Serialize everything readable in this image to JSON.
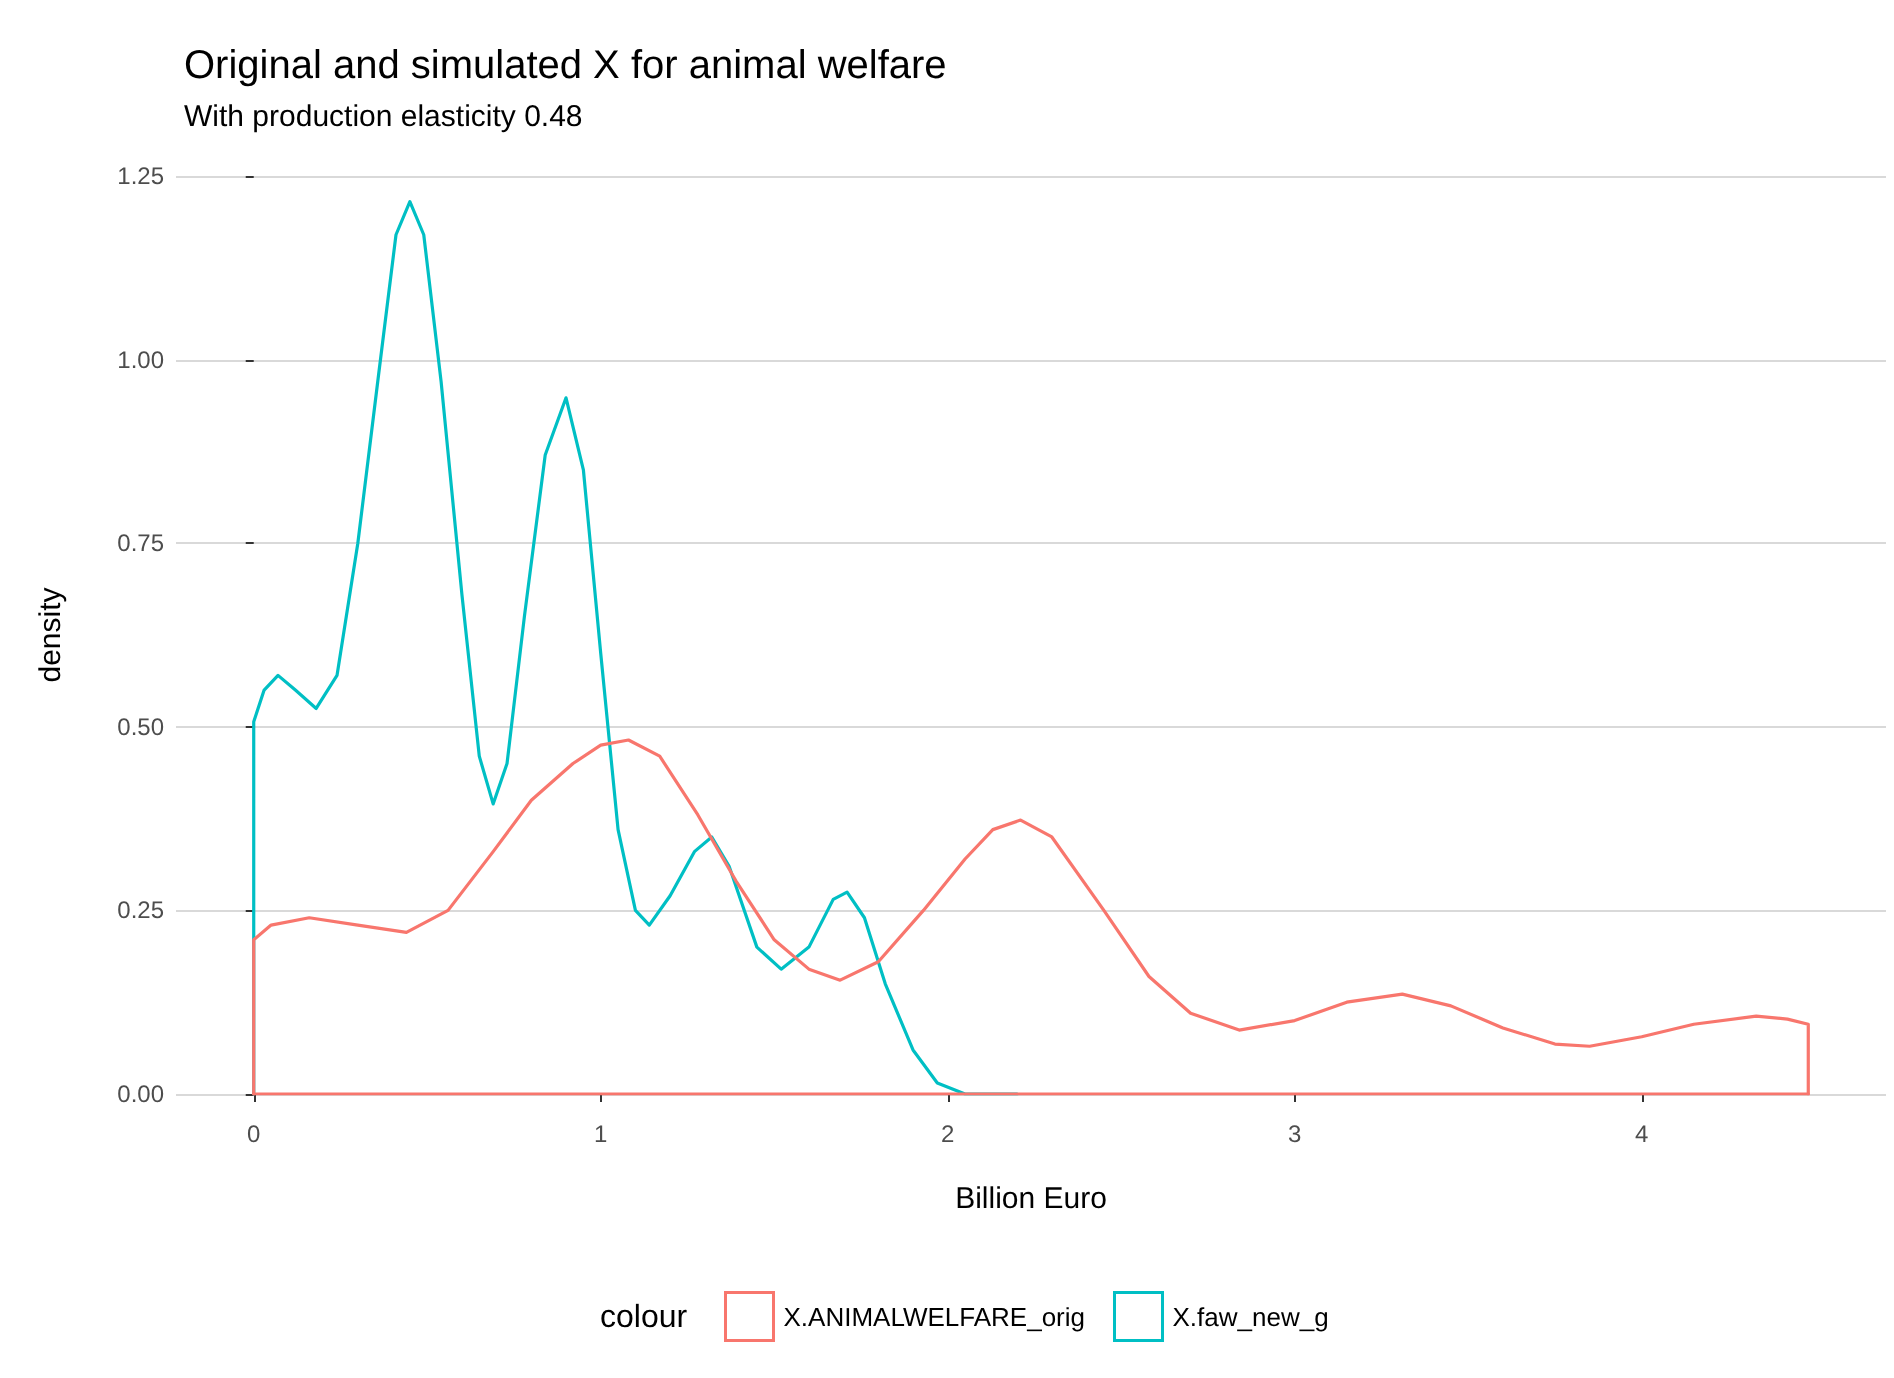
{
  "chart_data": {
    "type": "line",
    "title": "Original and simulated X for animal welfare",
    "subtitle": "With production elasticity 0.48",
    "xlabel": "Billion Euro",
    "ylabel": "density",
    "legend_title": "colour",
    "series": [
      {
        "color": "#f8766d",
        "x": [
          0,
          4.48
        ],
        "values": [
          0,
          0
        ]
      },
      {
        "name": "X.ANIMALWELFARE_orig",
        "color": "#f8766d",
        "x": [
          0,
          0,
          0.05,
          0.16,
          0.3,
          0.44,
          0.56,
          0.69,
          0.8,
          0.92,
          1.0,
          1.08,
          1.17,
          1.28,
          1.39,
          1.5,
          1.6,
          1.69,
          1.8,
          1.93,
          2.05,
          2.13,
          2.21,
          2.3,
          2.45,
          2.58,
          2.7,
          2.84,
          3.0,
          3.15,
          3.31,
          3.45,
          3.6,
          3.75,
          3.85,
          4.0,
          4.15,
          4.33,
          4.42,
          4.48,
          4.48
        ],
        "values": [
          0,
          0.21,
          0.23,
          0.24,
          0.23,
          0.22,
          0.25,
          0.33,
          0.4,
          0.45,
          0.475,
          0.482,
          0.46,
          0.38,
          0.29,
          0.21,
          0.17,
          0.155,
          0.18,
          0.25,
          0.32,
          0.36,
          0.373,
          0.35,
          0.25,
          0.16,
          0.11,
          0.087,
          0.1,
          0.125,
          0.136,
          0.12,
          0.09,
          0.068,
          0.065,
          0.078,
          0.095,
          0.106,
          0.102,
          0.095,
          0
        ]
      },
      {
        "name": "X.faw_new_g",
        "color": "#00bfc4",
        "x": [
          0,
          0,
          0.03,
          0.07,
          0.12,
          0.18,
          0.24,
          0.3,
          0.36,
          0.41,
          0.45,
          0.49,
          0.54,
          0.6,
          0.65,
          0.69,
          0.73,
          0.78,
          0.84,
          0.9,
          0.95,
          1.0,
          1.05,
          1.1,
          1.14,
          1.2,
          1.27,
          1.32,
          1.37,
          1.45,
          1.52,
          1.6,
          1.67,
          1.71,
          1.76,
          1.82,
          1.9,
          1.97,
          2.05,
          2.2
        ],
        "values": [
          0,
          0.507,
          0.55,
          0.57,
          0.55,
          0.525,
          0.57,
          0.75,
          0.98,
          1.17,
          1.215,
          1.17,
          0.97,
          0.68,
          0.46,
          0.395,
          0.45,
          0.65,
          0.87,
          0.948,
          0.85,
          0.6,
          0.36,
          0.25,
          0.23,
          0.27,
          0.33,
          0.35,
          0.31,
          0.2,
          0.17,
          0.2,
          0.265,
          0.275,
          0.24,
          0.15,
          0.06,
          0.015,
          0,
          0
        ]
      }
    ],
    "xlim": [
      -0.224,
      4.704
    ],
    "xticks": [
      0,
      1,
      2,
      3,
      4
    ],
    "ylim": [
      0,
      1.25
    ],
    "yticks": [
      {
        "value": 0,
        "label": "0.00"
      },
      {
        "value": 0.25,
        "label": "0.25"
      },
      {
        "value": 0.5,
        "label": "0.50"
      },
      {
        "value": 0.75,
        "label": "0.75"
      },
      {
        "value": 1,
        "label": "1.00"
      },
      {
        "value": 1.25,
        "label": "1.25"
      }
    ],
    "grid": "y",
    "legend": "bottom",
    "marker": "none",
    "line_style": "solid"
  }
}
